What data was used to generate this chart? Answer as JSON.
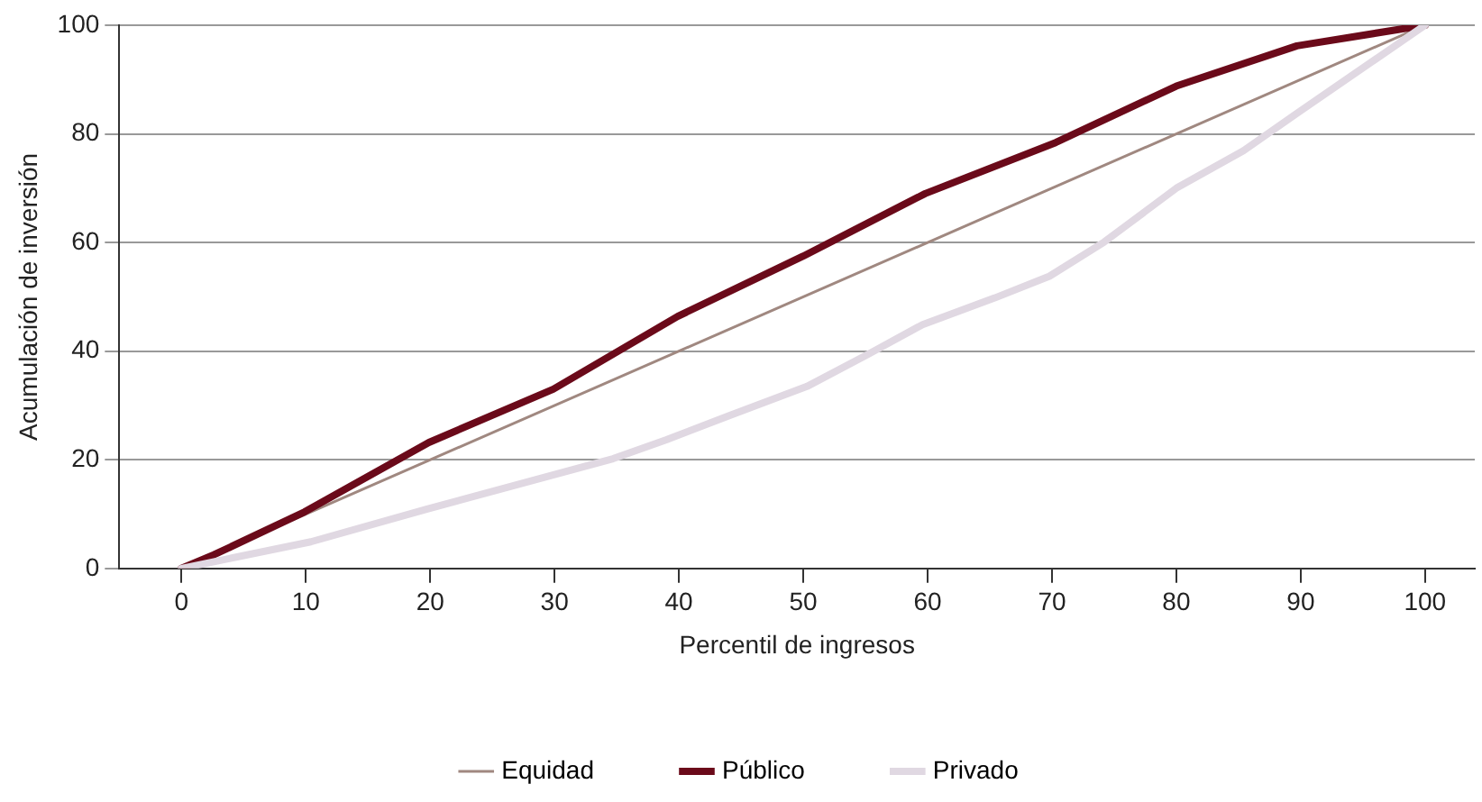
{
  "chart_data": {
    "type": "line",
    "xlabel": "Percentil de ingresos",
    "ylabel": "Acumulación de inversión",
    "xlim": [
      -5,
      104
    ],
    "xticks": [
      0,
      10,
      20,
      30,
      40,
      50,
      60,
      70,
      80,
      90,
      100
    ],
    "ylim": [
      0,
      100
    ],
    "yticks": [
      0,
      20,
      40,
      60,
      80,
      100
    ],
    "grid": "y",
    "legend": "bottom",
    "marker": "none",
    "line_style": "solid",
    "series": [
      {
        "name": "Equidad",
        "color": "#a08880",
        "x": [
          0,
          100
        ],
        "values": [
          0,
          100
        ]
      },
      {
        "name": "Público",
        "color": "#6b0a1a",
        "x": [
          0,
          2.6,
          9.9,
          19.9,
          29.9,
          39.9,
          50,
          59.8,
          70.3,
          80,
          89.7,
          100
        ],
        "values": [
          0,
          2.5,
          10.4,
          23.2,
          33,
          46.4,
          57.5,
          69,
          78.4,
          88.8,
          96.2,
          100
        ]
      },
      {
        "name": "Privado",
        "color": "#e0d8e2",
        "x": [
          0,
          10.4,
          19.7,
          29.4,
          34.7,
          39,
          44,
          50.3,
          55.2,
          59.6,
          65.4,
          69.8,
          74.2,
          80,
          85.4,
          89.7,
          100
        ],
        "values": [
          0,
          4.9,
          10.9,
          16.9,
          20.2,
          23.7,
          28.1,
          33.5,
          39.4,
          44.9,
          49.8,
          53.8,
          60.1,
          70,
          76.9,
          83.8,
          100
        ]
      }
    ]
  }
}
